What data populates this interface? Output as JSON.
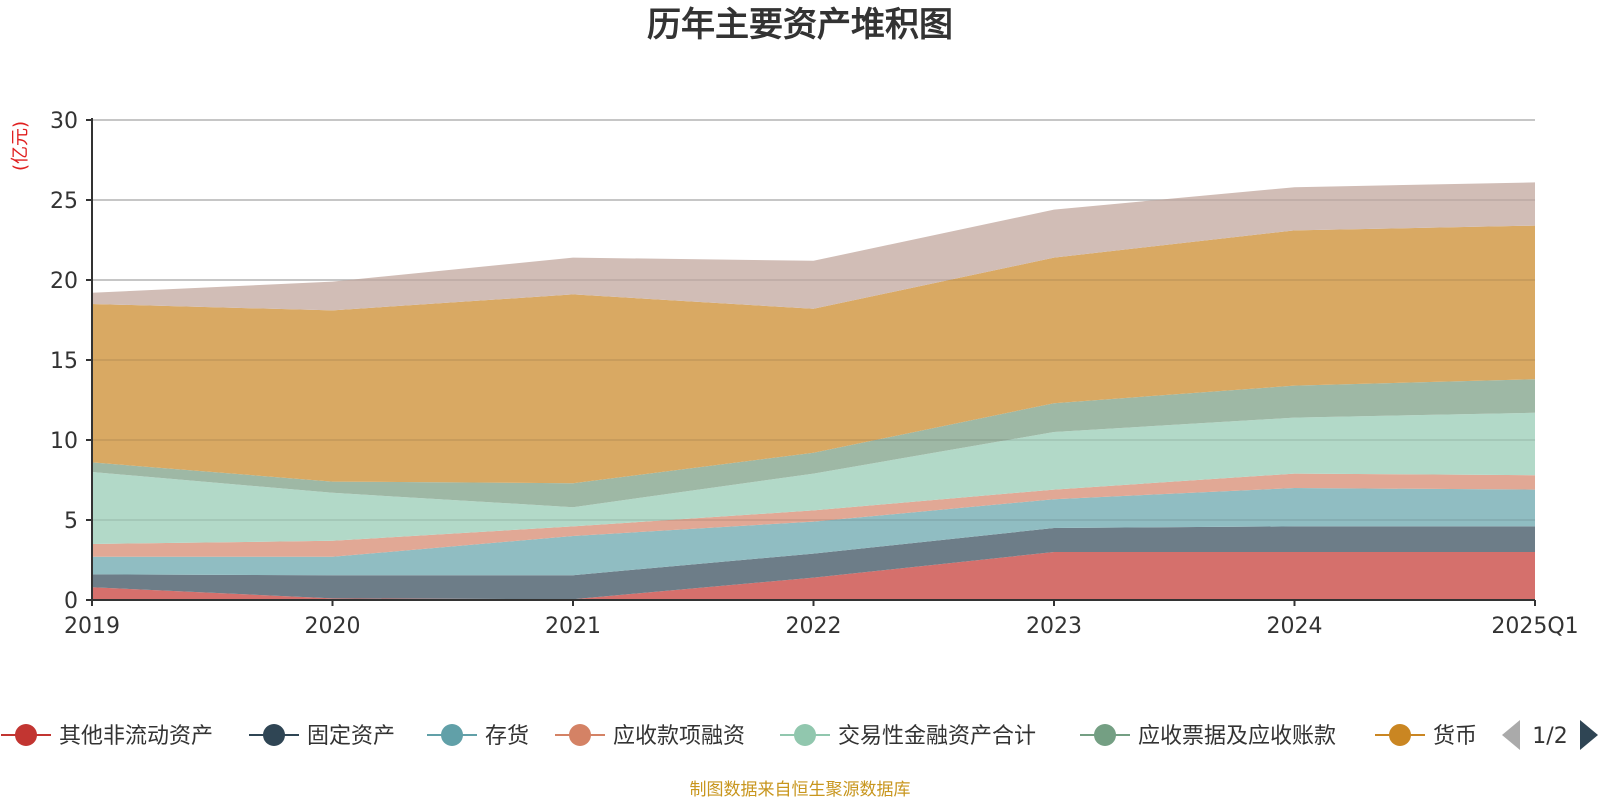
{
  "title": "历年主要资产堆积图",
  "unit_label": "(亿元)",
  "source_note": "制图数据来自恒生聚源数据库",
  "legend_page": "1/2",
  "chart_data": {
    "type": "area",
    "stacked": true,
    "categories": [
      "2019",
      "2020",
      "2021",
      "2022",
      "2023",
      "2024",
      "2025Q1"
    ],
    "ylim": [
      0,
      30
    ],
    "yticks": [
      0,
      5,
      10,
      15,
      20,
      25,
      30
    ],
    "grid": true,
    "legend_position": "bottom",
    "series": [
      {
        "name": "其他非流动资产",
        "color": "#c23531",
        "fill": "#d5706c",
        "values": [
          0.8,
          0.1,
          0.05,
          1.4,
          3.0,
          3.0,
          3.0
        ]
      },
      {
        "name": "固定资产",
        "color": "#2f4554",
        "fill": "#6d7d88",
        "values": [
          0.8,
          1.45,
          1.5,
          1.5,
          1.5,
          1.6,
          1.6
        ]
      },
      {
        "name": "存货",
        "color": "#61a0a8",
        "fill": "#90bdc2",
        "values": [
          1.1,
          1.15,
          2.45,
          2.0,
          1.8,
          2.4,
          2.3
        ]
      },
      {
        "name": "应收款项融资",
        "color": "#d48265",
        "fill": "#e1a895",
        "values": [
          0.8,
          1.0,
          0.6,
          0.7,
          0.6,
          0.9,
          0.9
        ]
      },
      {
        "name": "交易性金融资产合计",
        "color": "#91c7ae",
        "fill": "#b2d9c8",
        "values": [
          4.5,
          3.0,
          1.2,
          2.3,
          3.6,
          3.5,
          3.9
        ]
      },
      {
        "name": "应收票据及应收账款",
        "color": "#749f83",
        "fill": "#9eb8a5",
        "values": [
          0.6,
          0.7,
          1.5,
          1.3,
          1.8,
          2.0,
          2.1
        ]
      },
      {
        "name": "货币",
        "color": "#ca8622",
        "fill": "#d9a963",
        "values": [
          9.9,
          10.7,
          11.8,
          9.0,
          9.1,
          9.7,
          9.6
        ]
      },
      {
        "name": "",
        "color": "#bda29a",
        "fill": "#d1bdb6",
        "values": [
          0.7,
          1.8,
          2.3,
          3.0,
          3.0,
          2.7,
          2.7
        ]
      }
    ]
  }
}
